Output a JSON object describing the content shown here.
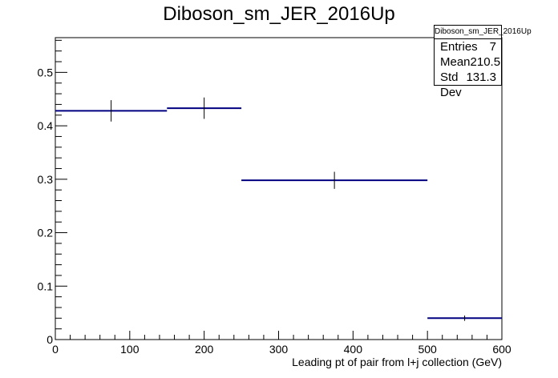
{
  "chart_data": {
    "type": "histogram",
    "title": "Diboson_sm_JER_2016Up",
    "xlabel": "Leading pt of pair from l+j collection (GeV)",
    "ylabel": "",
    "xlim": [
      0,
      600
    ],
    "ylim": [
      0,
      0.565
    ],
    "x_ticks": [
      0,
      100,
      200,
      300,
      400,
      500,
      600
    ],
    "y_ticks": [
      0,
      0.1,
      0.2,
      0.3,
      0.4,
      0.5
    ],
    "y_tick_labels": [
      "0",
      "0.1",
      "0.2",
      "0.3",
      "0.4",
      "0.5"
    ],
    "bins": [
      {
        "x_low": 0,
        "x_high": 150,
        "value": 0.428,
        "error": 0.02
      },
      {
        "x_low": 150,
        "x_high": 250,
        "value": 0.433,
        "error": 0.02
      },
      {
        "x_low": 250,
        "x_high": 500,
        "value": 0.298,
        "error": 0.016
      },
      {
        "x_low": 500,
        "x_high": 600,
        "value": 0.04,
        "error": 0.005
      }
    ],
    "line_color": "#000080",
    "error_color": "#000000",
    "grid": false,
    "legend": "none",
    "stats_box": {
      "title": "Diboson_sm_JER_2016Up",
      "rows": [
        {
          "label": "Entries",
          "value": "7"
        },
        {
          "label": "Mean",
          "value": "210.5"
        },
        {
          "label": "Std Dev",
          "value": "131.3"
        }
      ],
      "position": "top-right"
    }
  }
}
